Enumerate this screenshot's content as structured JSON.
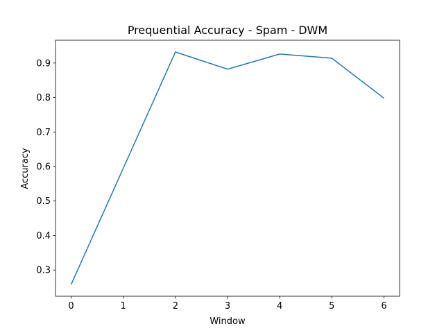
{
  "chart_data": {
    "type": "line",
    "title": "Prequential Accuracy - Spam - DWM",
    "x_label": "Window",
    "y_label": "Accuracy",
    "x": [
      0,
      1,
      2,
      3,
      4,
      5,
      6
    ],
    "series": [
      {
        "name": "Accuracy",
        "color": "#1f77b4",
        "values": [
          0.258,
          0.595,
          0.932,
          0.882,
          0.926,
          0.914,
          0.798
        ]
      }
    ],
    "xlim": [
      -0.3,
      6.3
    ],
    "xticks": [
      0,
      1,
      2,
      3,
      4,
      5,
      6
    ],
    "ylim": [
      0.224,
      0.966
    ],
    "yticks": [
      0.3,
      0.4,
      0.5,
      0.6,
      0.7,
      0.8,
      0.9
    ],
    "grid": false,
    "legend": false
  }
}
